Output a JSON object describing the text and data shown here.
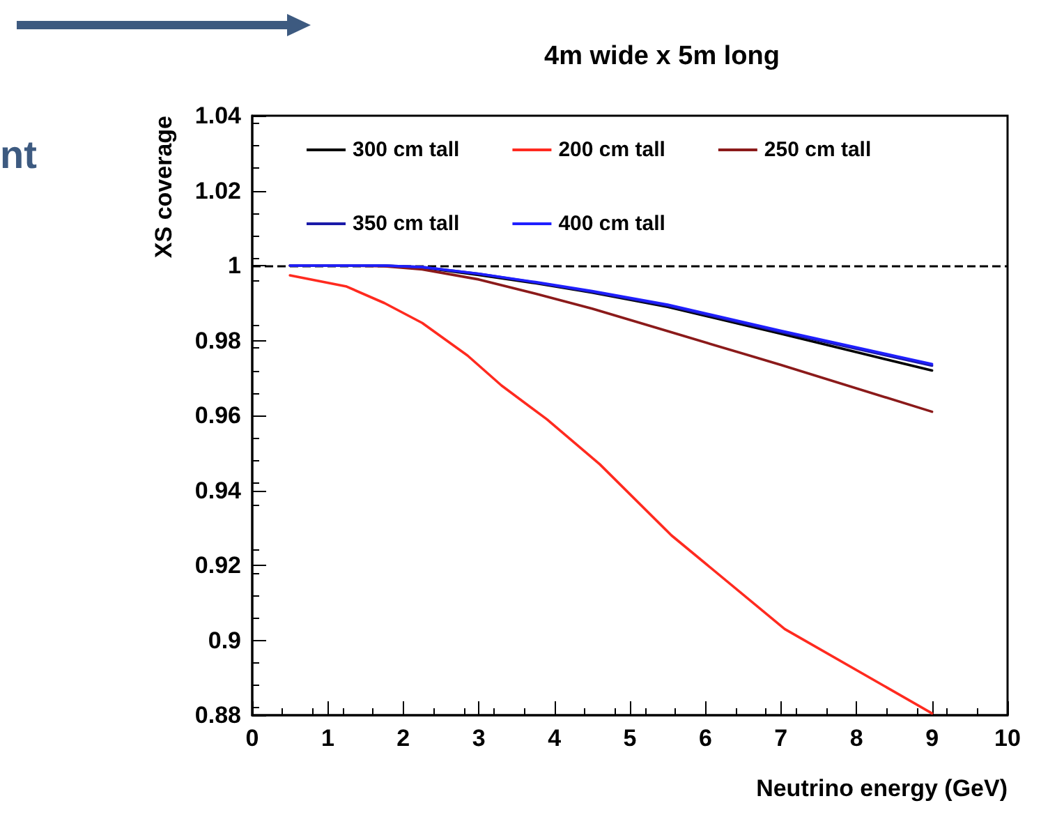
{
  "chart_data": {
    "type": "line",
    "title": "4m wide x 5m long",
    "xlabel": "Neutrino energy (GeV)",
    "ylabel": "XS coverage",
    "annotations": [
      "nt"
    ],
    "series": [
      {
        "name": "300 cm tall",
        "color": "#000000",
        "x": [
          0.5,
          1.25,
          1.75,
          2.25,
          3,
          3.75,
          4.5,
          5.5,
          7,
          9
        ],
        "values": [
          1.0,
          1.0,
          1.0,
          0.9995,
          0.9975,
          0.9953,
          0.9928,
          0.989,
          0.9818,
          0.972
        ]
      },
      {
        "name": "200 cm tall",
        "color": "#ff2a1f",
        "x": [
          0.5,
          1.25,
          1.75,
          2.25,
          2.85,
          3.3,
          3.9,
          4.6,
          5.55,
          7.05,
          9
        ],
        "values": [
          0.9974,
          0.9944,
          0.99,
          0.9847,
          0.976,
          0.968,
          0.959,
          0.947,
          0.928,
          0.903,
          0.8805
        ]
      },
      {
        "name": "250 cm tall",
        "color": "#8b1a1a",
        "x": [
          0.5,
          1.25,
          1.75,
          2.25,
          3,
          3.75,
          4.5,
          5.5,
          7,
          9
        ],
        "values": [
          1.0,
          1.0,
          0.9998,
          0.999,
          0.9963,
          0.9925,
          0.9885,
          0.9825,
          0.9735,
          0.961
        ]
      },
      {
        "name": "350 cm tall",
        "color": "#1a1aa8",
        "x": [
          0.5,
          1.25,
          1.75,
          2.25,
          3,
          3.75,
          4.5,
          5.5,
          7,
          9
        ],
        "values": [
          1.0,
          1.0,
          1.0,
          0.9996,
          0.9978,
          0.9955,
          0.993,
          0.9893,
          0.9823,
          0.9733
        ]
      },
      {
        "name": "400 cm tall",
        "color": "#1f1fff",
        "x": [
          0.5,
          1.25,
          1.75,
          2.25,
          3,
          3.75,
          4.5,
          5.5,
          7,
          9
        ],
        "values": [
          1.0,
          1.0,
          1.0,
          0.9996,
          0.9978,
          0.9956,
          0.9932,
          0.9896,
          0.9826,
          0.9737
        ]
      }
    ],
    "xlim": [
      0,
      10
    ],
    "xticks": [
      0,
      1,
      2,
      3,
      4,
      5,
      6,
      7,
      8,
      9,
      10
    ],
    "ylim": [
      0.88,
      1.04
    ],
    "yticks": [
      0.88,
      0.9,
      0.92,
      0.94,
      0.96,
      0.98,
      1,
      1.02,
      1.04
    ],
    "ref_lines": [
      {
        "axis": "y",
        "value": 1,
        "color": "#000000",
        "line_style": "dashed"
      }
    ],
    "legend": "top",
    "grid": false,
    "marker": "none",
    "line_style": "solid"
  }
}
